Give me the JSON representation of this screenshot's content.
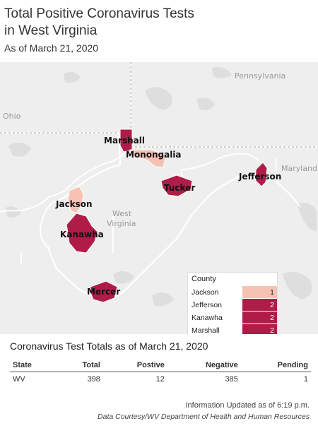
{
  "header": {
    "title_line1": "Total Positive Coronavirus Tests",
    "title_line2": "in West Virginia",
    "subtitle": "As of March 21, 2020"
  },
  "map": {
    "labels": {
      "pennsylvania": "Pennsylvania",
      "ohio": "Ohio",
      "maryland": "Maryland",
      "west": "West",
      "virginia": "Virginia"
    },
    "colors": {
      "one": "#f6c2b4",
      "two": "#b01c48",
      "background": "#eeeeee",
      "water": "#dedede",
      "border": "#ffffff"
    }
  },
  "chart_data": {
    "type": "map",
    "legend_title": "County",
    "counties": [
      {
        "name": "Jackson",
        "value": 1
      },
      {
        "name": "Jefferson",
        "value": 2
      },
      {
        "name": "Kanawha",
        "value": 2
      },
      {
        "name": "Marshall",
        "value": 2
      },
      {
        "name": "Mercer",
        "value": 2
      },
      {
        "name": "Monongalia",
        "value": 1
      },
      {
        "name": "Tucker",
        "value": 2
      }
    ]
  },
  "totals": {
    "section_title": "Coronavirus Test Totals as of March 21, 2020",
    "columns": [
      "State",
      "Total",
      "Postive",
      "Negative",
      "Pending"
    ],
    "rows": [
      [
        "WV",
        "398",
        "12",
        "385",
        "1"
      ]
    ]
  },
  "footer": {
    "updated": "Information Updated as of 6:19 p.m.",
    "credit": "Data Courtesy/WV Department of Health and Human Resources"
  }
}
